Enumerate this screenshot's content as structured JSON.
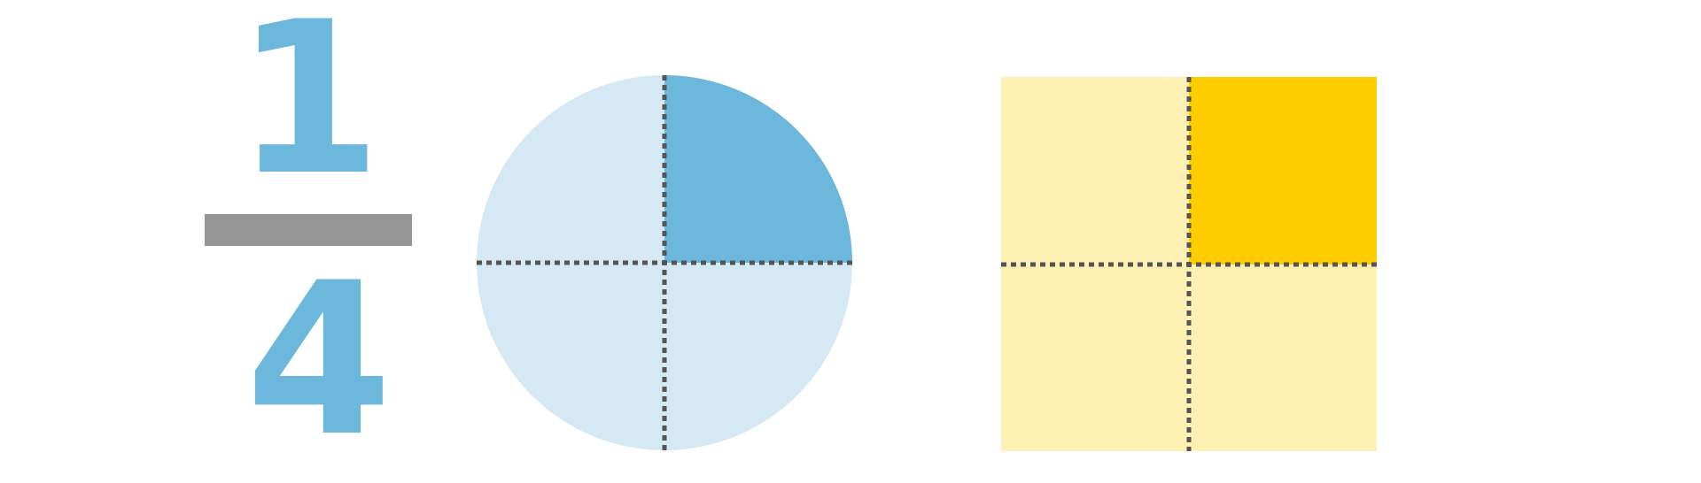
{
  "fraction": {
    "numerator": "1",
    "denominator": "4"
  },
  "shapes": {
    "circle": {
      "parts_total": 4,
      "parts_shaded": 1,
      "shaded_part": "top-right"
    },
    "square": {
      "parts_total": 4,
      "parts_shaded": 1,
      "shaded_part": "top-right"
    }
  },
  "colors": {
    "fraction_digits": "#6cb7dc",
    "fraction_bar": "#969696",
    "circle_shaded": "#6cb7dc",
    "circle_unshaded": "#d4e9f4",
    "square_shaded": "#ffcc00",
    "square_unshaded": "#fff0b3",
    "divider_lines": "#555555"
  }
}
